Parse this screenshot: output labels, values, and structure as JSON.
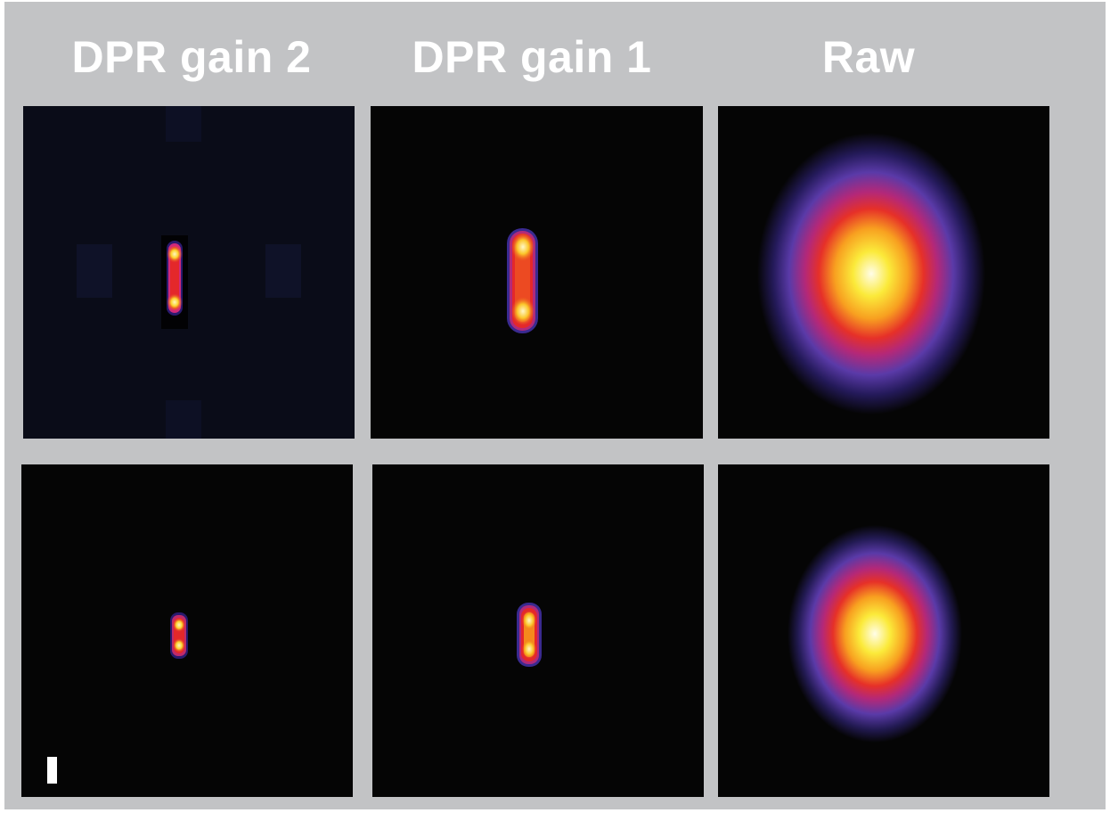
{
  "column_titles": [
    "DPR gain 2",
    "DPR gain 1",
    "Raw"
  ],
  "colormap": [
    "#000000",
    "#2a1a6e",
    "#5a3aa8",
    "#b02a7a",
    "#e4282a",
    "#f5801c",
    "#fbe332",
    "#fffbe0"
  ],
  "panels": [
    {
      "row": 1,
      "column": "DPR gain 2",
      "content": "two-lobed-elongated-spot"
    },
    {
      "row": 1,
      "column": "DPR gain 1",
      "content": "two-lobed-elongated-spot"
    },
    {
      "row": 1,
      "column": "Raw",
      "content": "broad-blurred-spot"
    },
    {
      "row": 2,
      "column": "DPR gain 2",
      "content": "small-elongated-spot"
    },
    {
      "row": 2,
      "column": "DPR gain 1",
      "content": "small-elongated-spot"
    },
    {
      "row": 2,
      "column": "Raw",
      "content": "broad-blurred-spot"
    }
  ],
  "scale_bar": {
    "color": "#ffffff"
  }
}
